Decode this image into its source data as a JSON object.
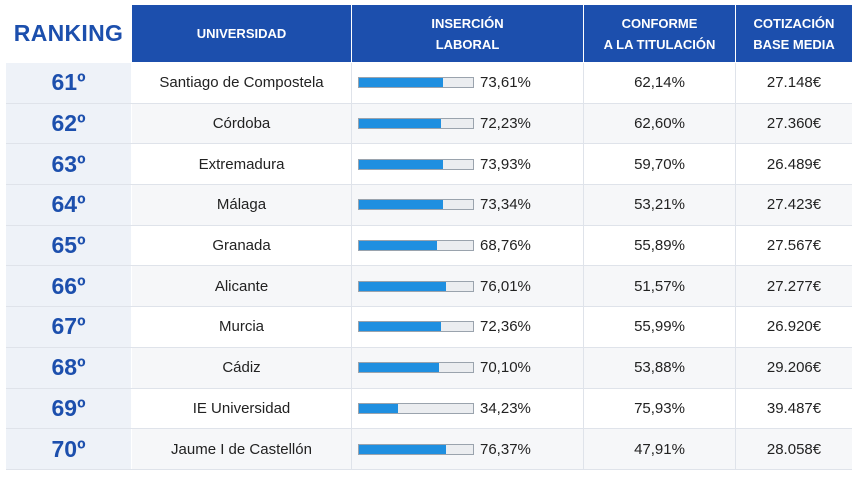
{
  "header": {
    "ranking": "RANKING",
    "universidad": "UNIVERSIDAD",
    "insercion": "INSERCIÓN\nLABORAL",
    "conforme": "CONFORME\nA LA TITULACIÓN",
    "cotizacion": "COTIZACIÓN\nBASE MEDIA"
  },
  "colors": {
    "header_bg": "#1c4fad",
    "bar_fill": "#1f8fe0",
    "rank_text": "#1c4fad"
  },
  "chart_data": {
    "type": "table",
    "columns": [
      "RANKING",
      "UNIVERSIDAD",
      "INSERCIÓN LABORAL",
      "CONFORME A LA TITULACIÓN",
      "COTIZACIÓN BASE MEDIA"
    ],
    "rows": [
      {
        "rank": "61º",
        "universidad": "Santiago de Compostela",
        "insercion": "73,61%",
        "insercion_value": 73.61,
        "conforme": "62,14%",
        "cotizacion": "27.148€"
      },
      {
        "rank": "62º",
        "universidad": "Córdoba",
        "insercion": "72,23%",
        "insercion_value": 72.23,
        "conforme": "62,60%",
        "cotizacion": "27.360€"
      },
      {
        "rank": "63º",
        "universidad": "Extremadura",
        "insercion": "73,93%",
        "insercion_value": 73.93,
        "conforme": "59,70%",
        "cotizacion": "26.489€"
      },
      {
        "rank": "64º",
        "universidad": "Málaga",
        "insercion": "73,34%",
        "insercion_value": 73.34,
        "conforme": "53,21%",
        "cotizacion": "27.423€"
      },
      {
        "rank": "65º",
        "universidad": "Granada",
        "insercion": "68,76%",
        "insercion_value": 68.76,
        "conforme": "55,89%",
        "cotizacion": "27.567€"
      },
      {
        "rank": "66º",
        "universidad": "Alicante",
        "insercion": "76,01%",
        "insercion_value": 76.01,
        "conforme": "51,57%",
        "cotizacion": "27.277€"
      },
      {
        "rank": "67º",
        "universidad": "Murcia",
        "insercion": "72,36%",
        "insercion_value": 72.36,
        "conforme": "55,99%",
        "cotizacion": "26.920€"
      },
      {
        "rank": "68º",
        "universidad": "Cádiz",
        "insercion": "70,10%",
        "insercion_value": 70.1,
        "conforme": "53,88%",
        "cotizacion": "29.206€"
      },
      {
        "rank": "69º",
        "universidad": "IE Universidad",
        "insercion": "34,23%",
        "insercion_value": 34.23,
        "conforme": "75,93%",
        "cotizacion": "39.487€"
      },
      {
        "rank": "70º",
        "universidad": "Jaume I de Castellón",
        "insercion": "76,37%",
        "insercion_value": 76.37,
        "conforme": "47,91%",
        "cotizacion": "28.058€"
      }
    ]
  }
}
